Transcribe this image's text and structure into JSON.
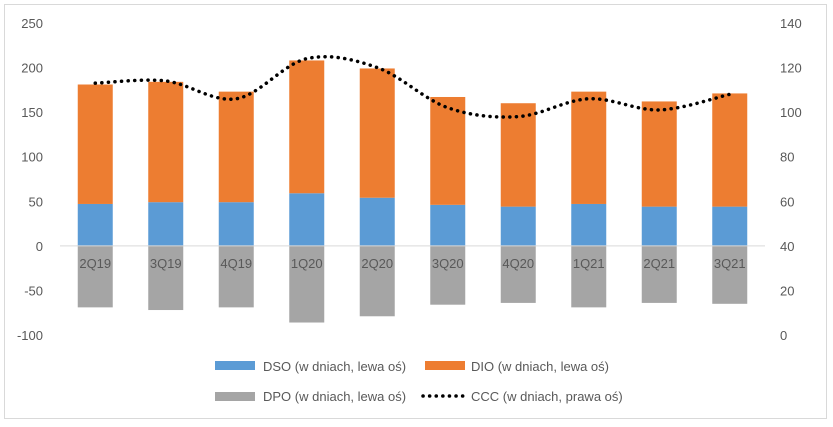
{
  "chart_data": {
    "type": "bar",
    "stacked": true,
    "categories": [
      "2Q19",
      "3Q19",
      "4Q19",
      "1Q20",
      "2Q20",
      "3Q20",
      "4Q20",
      "1Q21",
      "2Q21",
      "3Q21"
    ],
    "series": [
      {
        "name": "DSO (w dniach, lewa oś)",
        "axis": "left",
        "type": "bar",
        "color": "#5b9bd5",
        "values": [
          47,
          49,
          49,
          59,
          54,
          46,
          44,
          47,
          44,
          44
        ]
      },
      {
        "name": "DIO (w dniach, lewa oś)",
        "axis": "left",
        "type": "bar",
        "color": "#ed7d31",
        "values": [
          134,
          135,
          124,
          149,
          145,
          121,
          116,
          126,
          118,
          127
        ]
      },
      {
        "name": "DPO (w dniach, lewa oś)",
        "axis": "left",
        "type": "bar",
        "color": "#a5a5a5",
        "values": [
          -69,
          -72,
          -69,
          -86,
          -79,
          -66,
          -64,
          -69,
          -64,
          -65
        ]
      },
      {
        "name": "CCC (w dniach, prawa oś)",
        "axis": "right",
        "type": "line",
        "style": "dotted",
        "color": "#000000",
        "values": [
          113,
          114,
          106,
          124,
          120,
          102,
          98,
          106,
          101,
          108
        ]
      }
    ],
    "left_axis": {
      "min": -100,
      "max": 250,
      "ticks": [
        "-100",
        "-50",
        "0",
        "50",
        "100",
        "150",
        "200",
        "250"
      ]
    },
    "right_axis": {
      "min": 0,
      "max": 140,
      "ticks": [
        "0",
        "20",
        "40",
        "60",
        "80",
        "100",
        "120",
        "140"
      ]
    },
    "grid": false,
    "legend": "bottom"
  }
}
